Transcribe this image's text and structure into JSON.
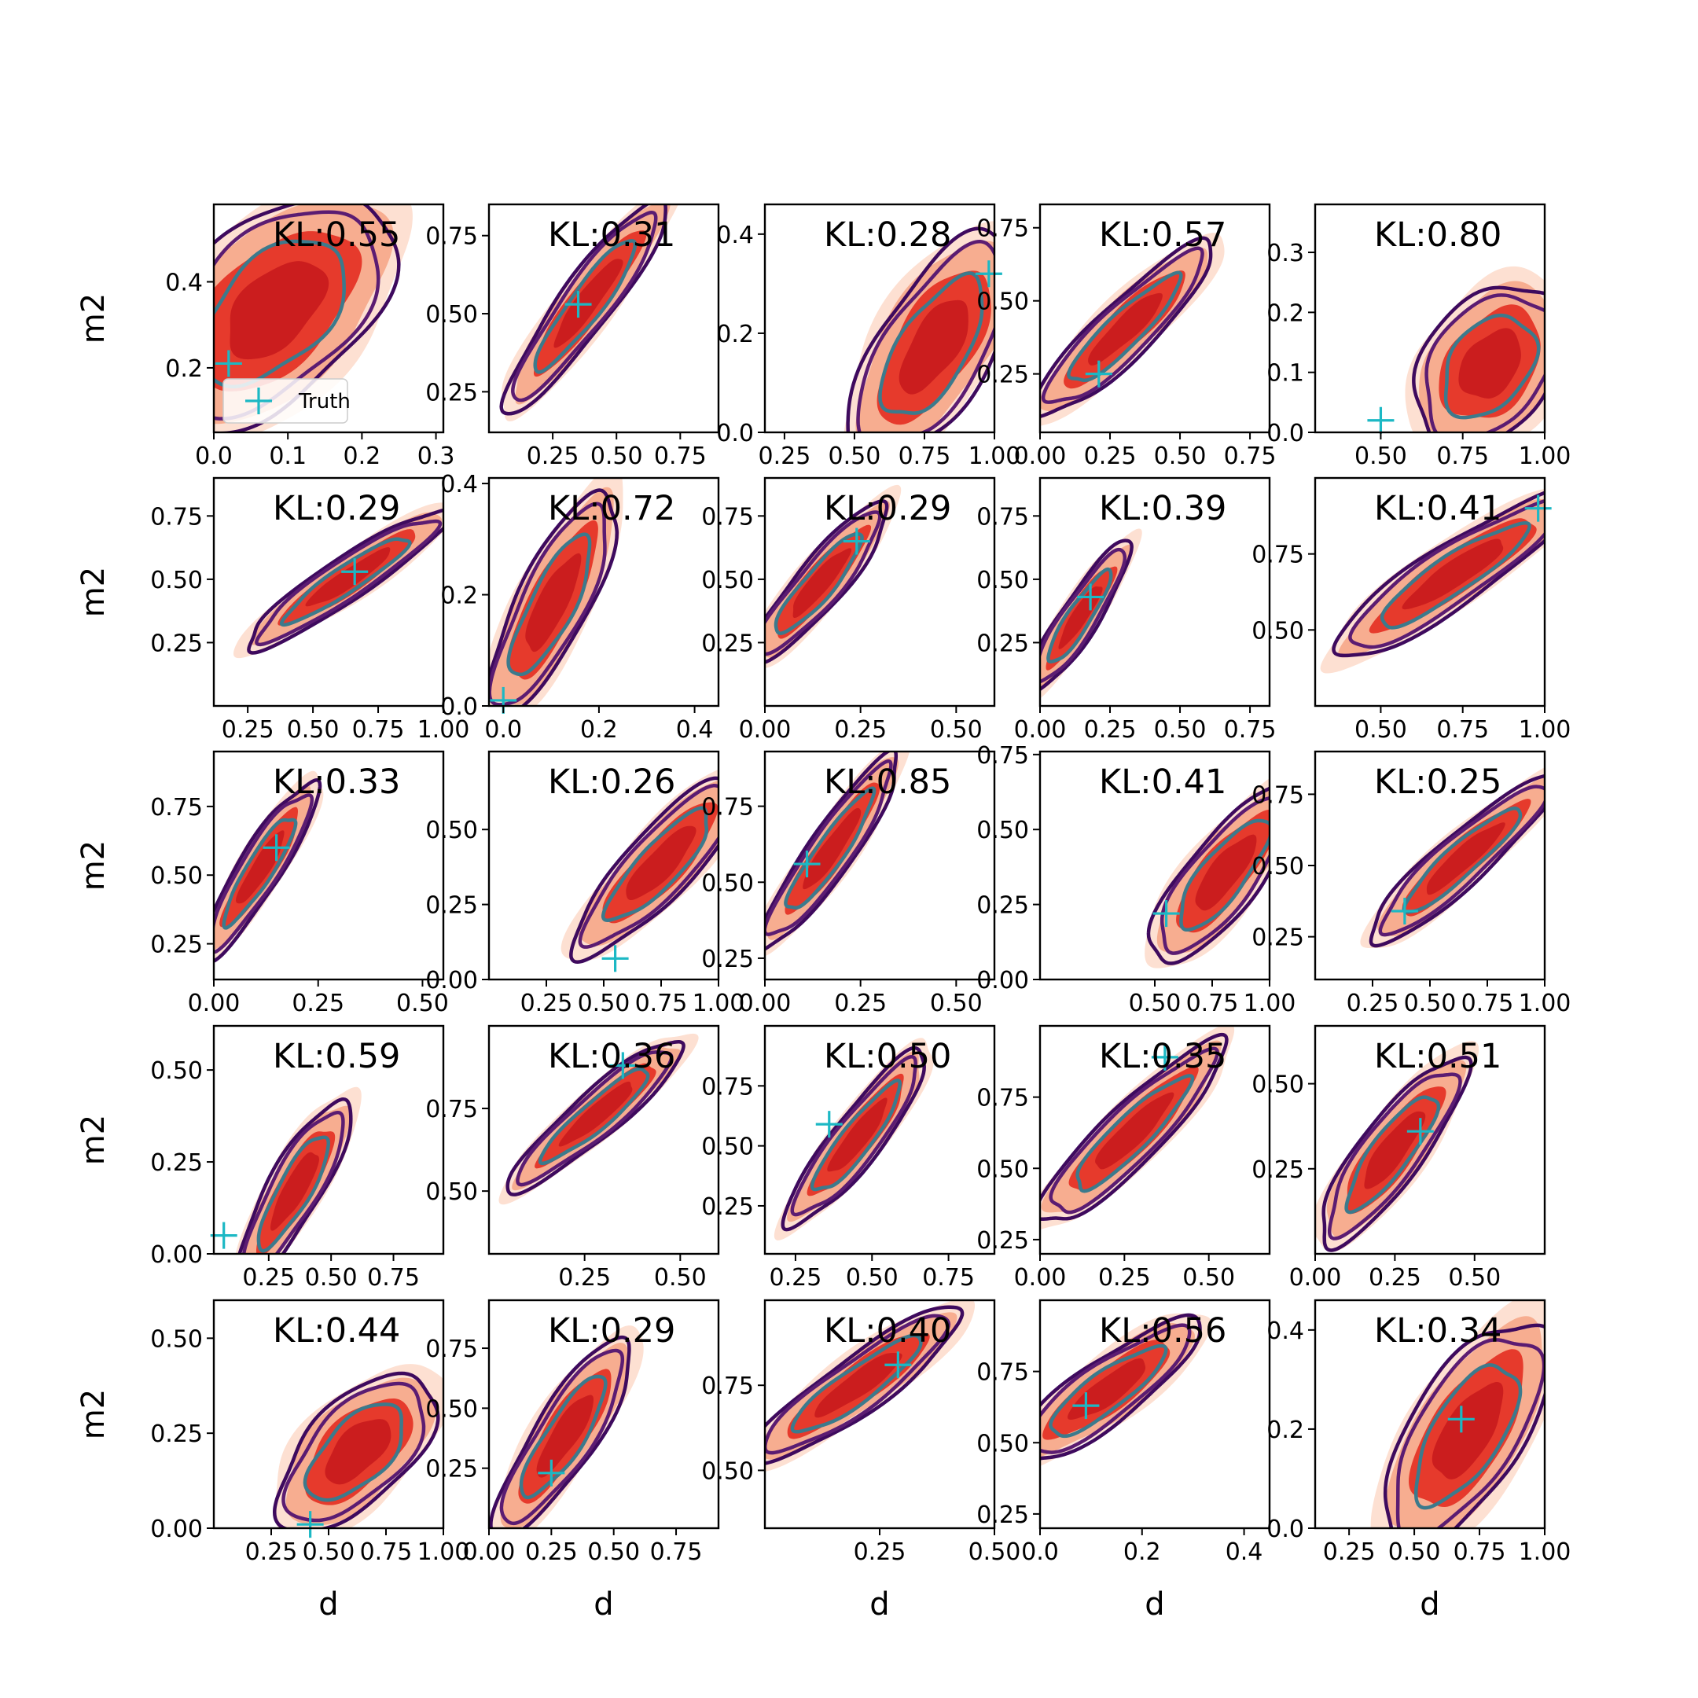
{
  "figure": {
    "legend_label": "Truth",
    "legend_position": "lower-left of panel 1"
  },
  "colors": {
    "fill_light": "#fde0d2",
    "fill_mid": "#f7ad90",
    "fill_dark": "#e63a2c",
    "fill_core": "#cb1d1e",
    "line_dark": "#3e0a5e",
    "line_mid": "#5b1c72",
    "line_teal": "#3c7a8c",
    "truth": "#1cb8c4"
  },
  "chart_data": [
    {
      "type": "contour",
      "title": "KL:0.55",
      "xlabel": "",
      "ylabel": "m2",
      "xlim": [
        0.0,
        0.31
      ],
      "ylim": [
        0.05,
        0.58
      ],
      "xticks": [
        0.0,
        0.1,
        0.2,
        0.3
      ],
      "xtick_labels": [
        "0.0",
        "0.1",
        "0.2",
        "0.3"
      ],
      "yticks": [
        0.2,
        0.4
      ],
      "ytick_labels": [
        "0.2",
        "0.4"
      ],
      "center": [
        0.08,
        0.33
      ],
      "spread": [
        0.07,
        0.12
      ],
      "corr": 0.5,
      "truth": [
        0.02,
        0.21
      ]
    },
    {
      "type": "contour",
      "title": "KL:0.31",
      "xlabel": "",
      "ylabel": "",
      "xlim": [
        0.0,
        0.9
      ],
      "ylim": [
        0.12,
        0.85
      ],
      "xticks": [
        0.25,
        0.5,
        0.75
      ],
      "xtick_labels": [
        "0.25",
        "0.50",
        "0.75"
      ],
      "yticks": [
        0.25,
        0.5,
        0.75
      ],
      "ytick_labels": [
        "0.25",
        "0.50",
        "0.75"
      ],
      "center": [
        0.38,
        0.53
      ],
      "spread": [
        0.14,
        0.15
      ],
      "corr": 0.92,
      "truth": [
        0.35,
        0.53
      ]
    },
    {
      "type": "contour",
      "title": "KL:0.28",
      "xlabel": "",
      "ylabel": "",
      "xlim": [
        0.18,
        1.0
      ],
      "ylim": [
        0.0,
        0.46
      ],
      "xticks": [
        0.25,
        0.5,
        0.75,
        1.0
      ],
      "xtick_labels": [
        "0.25",
        "0.50",
        "0.75",
        "1.00"
      ],
      "yticks": [
        0.0,
        0.2,
        0.4
      ],
      "ytick_labels": [
        "0.0",
        "0.2",
        "0.4"
      ],
      "center": [
        0.78,
        0.17
      ],
      "spread": [
        0.13,
        0.1
      ],
      "corr": 0.65,
      "truth": [
        0.98,
        0.32
      ]
    },
    {
      "type": "contour",
      "title": "KL:0.57",
      "xlabel": "",
      "ylabel": "",
      "xlim": [
        0.0,
        0.82
      ],
      "ylim": [
        0.05,
        0.83
      ],
      "xticks": [
        0.0,
        0.25,
        0.5,
        0.75
      ],
      "xtick_labels": [
        "0.00",
        "0.25",
        "0.50",
        "0.75"
      ],
      "yticks": [
        0.25,
        0.5,
        0.75
      ],
      "ytick_labels": [
        "0.25",
        "0.50",
        "0.75"
      ],
      "center": [
        0.3,
        0.4
      ],
      "spread": [
        0.14,
        0.13
      ],
      "corr": 0.9,
      "truth": [
        0.21,
        0.25
      ]
    },
    {
      "type": "contour",
      "title": "KL:0.80",
      "xlabel": "",
      "ylabel": "",
      "xlim": [
        0.3,
        1.0
      ],
      "ylim": [
        0.0,
        0.38
      ],
      "xticks": [
        0.5,
        0.75,
        1.0
      ],
      "xtick_labels": [
        "0.50",
        "0.75",
        "1.00"
      ],
      "yticks": [
        0.0,
        0.1,
        0.2,
        0.3
      ],
      "ytick_labels": [
        "0.0",
        "0.1",
        "0.2",
        "0.3"
      ],
      "center": [
        0.83,
        0.11
      ],
      "spread": [
        0.1,
        0.06
      ],
      "corr": 0.35,
      "truth": [
        0.5,
        0.02
      ]
    },
    {
      "type": "contour",
      "title": "KL:0.29",
      "xlabel": "",
      "ylabel": "m2",
      "xlim": [
        0.12,
        1.0
      ],
      "ylim": [
        0.0,
        0.9
      ],
      "xticks": [
        0.25,
        0.5,
        0.75,
        1.0
      ],
      "xtick_labels": [
        "0.25",
        "0.50",
        "0.75",
        "1.00"
      ],
      "yticks": [
        0.25,
        0.5,
        0.75
      ],
      "ytick_labels": [
        "0.25",
        "0.50",
        "0.75"
      ],
      "center": [
        0.63,
        0.5
      ],
      "spread": [
        0.17,
        0.12
      ],
      "corr": 0.93,
      "truth": [
        0.66,
        0.53
      ]
    },
    {
      "type": "contour",
      "title": "KL:0.72",
      "xlabel": "",
      "ylabel": "",
      "xlim": [
        -0.03,
        0.45
      ],
      "ylim": [
        0.0,
        0.41
      ],
      "xticks": [
        0.0,
        0.2,
        0.4
      ],
      "xtick_labels": [
        "0.0",
        "0.2",
        "0.4"
      ],
      "yticks": [
        0.0,
        0.2,
        0.4
      ],
      "ytick_labels": [
        "0.0",
        "0.2",
        "0.4"
      ],
      "center": [
        0.1,
        0.18
      ],
      "spread": [
        0.06,
        0.09
      ],
      "corr": 0.8,
      "truth": [
        0.0,
        0.01
      ]
    },
    {
      "type": "contour",
      "title": "KL:0.29",
      "xlabel": "",
      "ylabel": "",
      "xlim": [
        0.0,
        0.6
      ],
      "ylim": [
        0.0,
        0.9
      ],
      "xticks": [
        0.0,
        0.25,
        0.5
      ],
      "xtick_labels": [
        "0.00",
        "0.25",
        "0.50"
      ],
      "yticks": [
        0.25,
        0.5,
        0.75
      ],
      "ytick_labels": [
        "0.25",
        "0.50",
        "0.75"
      ],
      "center": [
        0.14,
        0.48
      ],
      "spread": [
        0.08,
        0.14
      ],
      "corr": 0.9,
      "truth": [
        0.24,
        0.65
      ]
    },
    {
      "type": "contour",
      "title": "KL:0.39",
      "xlabel": "",
      "ylabel": "",
      "xlim": [
        0.0,
        0.82
      ],
      "ylim": [
        0.0,
        0.9
      ],
      "xticks": [
        0.0,
        0.25,
        0.5,
        0.75
      ],
      "xtick_labels": [
        "0.00",
        "0.25",
        "0.50",
        "0.75"
      ],
      "yticks": [
        0.25,
        0.5,
        0.75
      ],
      "ytick_labels": [
        "0.25",
        "0.50",
        "0.75"
      ],
      "center": [
        0.14,
        0.35
      ],
      "spread": [
        0.08,
        0.13
      ],
      "corr": 0.9,
      "truth": [
        0.18,
        0.43
      ]
    },
    {
      "type": "contour",
      "title": "KL:0.41",
      "xlabel": "",
      "ylabel": "",
      "xlim": [
        0.3,
        1.0
      ],
      "ylim": [
        0.25,
        1.0
      ],
      "xticks": [
        0.5,
        0.75,
        1.0
      ],
      "xtick_labels": [
        "0.50",
        "0.75",
        "1.00"
      ],
      "yticks": [
        0.5,
        0.75
      ],
      "ytick_labels": [
        "0.50",
        "0.75"
      ],
      "center": [
        0.72,
        0.68
      ],
      "spread": [
        0.16,
        0.12
      ],
      "corr": 0.9,
      "truth": [
        0.98,
        0.9
      ]
    },
    {
      "type": "contour",
      "title": "KL:0.33",
      "xlabel": "",
      "ylabel": "m2",
      "xlim": [
        0.0,
        0.55
      ],
      "ylim": [
        0.12,
        0.95
      ],
      "xticks": [
        0.0,
        0.25,
        0.5
      ],
      "xtick_labels": [
        "0.00",
        "0.25",
        "0.50"
      ],
      "yticks": [
        0.25,
        0.5,
        0.75
      ],
      "ytick_labels": [
        "0.25",
        "0.50",
        "0.75"
      ],
      "center": [
        0.11,
        0.52
      ],
      "spread": [
        0.06,
        0.14
      ],
      "corr": 0.9,
      "truth": [
        0.15,
        0.6
      ]
    },
    {
      "type": "contour",
      "title": "KL:0.26",
      "xlabel": "",
      "ylabel": "",
      "xlim": [
        0.0,
        1.0
      ],
      "ylim": [
        0.0,
        0.76
      ],
      "xticks": [
        0.25,
        0.5,
        0.75,
        1.0
      ],
      "xtick_labels": [
        "0.25",
        "0.50",
        "0.75",
        "1.00"
      ],
      "yticks": [
        0.0,
        0.25,
        0.5
      ],
      "ytick_labels": [
        "0.00",
        "0.25",
        "0.50"
      ],
      "center": [
        0.74,
        0.38
      ],
      "spread": [
        0.16,
        0.13
      ],
      "corr": 0.85,
      "truth": [
        0.55,
        0.07
      ]
    },
    {
      "type": "contour",
      "title": "KL:0.85",
      "xlabel": "",
      "ylabel": "",
      "xlim": [
        0.0,
        0.6
      ],
      "ylim": [
        0.18,
        0.93
      ],
      "xticks": [
        0.0,
        0.25,
        0.5
      ],
      "xtick_labels": [
        "0.00",
        "0.25",
        "0.50"
      ],
      "yticks": [
        0.25,
        0.5,
        0.75
      ],
      "ytick_labels": [
        "0.25",
        "0.50",
        "0.75"
      ],
      "center": [
        0.17,
        0.6
      ],
      "spread": [
        0.08,
        0.14
      ],
      "corr": 0.92,
      "truth": [
        0.11,
        0.56
      ]
    },
    {
      "type": "contour",
      "title": "KL:0.41",
      "xlabel": "",
      "ylabel": "",
      "xlim": [
        0.0,
        1.0
      ],
      "ylim": [
        0.0,
        0.76
      ],
      "xticks": [
        0.5,
        0.75,
        1.0
      ],
      "xtick_labels": [
        "0.50",
        "0.75",
        "1.00"
      ],
      "yticks": [
        0.0,
        0.25,
        0.5,
        0.75
      ],
      "ytick_labels": [
        "0.00",
        "0.25",
        "0.50",
        "0.75"
      ],
      "center": [
        0.8,
        0.35
      ],
      "spread": [
        0.14,
        0.13
      ],
      "corr": 0.8,
      "truth": [
        0.55,
        0.22
      ]
    },
    {
      "type": "contour",
      "title": "KL:0.25",
      "xlabel": "",
      "ylabel": "",
      "xlim": [
        0.0,
        1.0
      ],
      "ylim": [
        0.1,
        0.9
      ],
      "xticks": [
        0.25,
        0.5,
        0.75,
        1.0
      ],
      "xtick_labels": [
        "0.25",
        "0.50",
        "0.75",
        "1.00"
      ],
      "yticks": [
        0.25,
        0.5,
        0.75
      ],
      "ytick_labels": [
        "0.25",
        "0.50",
        "0.75"
      ],
      "center": [
        0.64,
        0.52
      ],
      "spread": [
        0.18,
        0.13
      ],
      "corr": 0.92,
      "truth": [
        0.39,
        0.34
      ]
    },
    {
      "type": "contour",
      "title": "KL:0.59",
      "xlabel": "",
      "ylabel": "m2",
      "xlim": [
        0.03,
        0.95
      ],
      "ylim": [
        0.0,
        0.62
      ],
      "xticks": [
        0.25,
        0.5,
        0.75
      ],
      "xtick_labels": [
        "0.25",
        "0.50",
        "0.75"
      ],
      "yticks": [
        0.0,
        0.25,
        0.5
      ],
      "ytick_labels": [
        "0.00",
        "0.25",
        "0.50"
      ],
      "center": [
        0.35,
        0.17
      ],
      "spread": [
        0.1,
        0.11
      ],
      "corr": 0.85,
      "truth": [
        0.07,
        0.05
      ]
    },
    {
      "type": "contour",
      "title": "KL:0.36",
      "xlabel": "",
      "ylabel": "",
      "xlim": [
        0.0,
        0.6
      ],
      "ylim": [
        0.31,
        1.0
      ],
      "xticks": [
        0.25,
        0.5
      ],
      "xtick_labels": [
        "0.25",
        "0.50"
      ],
      "yticks": [
        0.5,
        0.75
      ],
      "ytick_labels": [
        "0.50",
        "0.75"
      ],
      "center": [
        0.28,
        0.73
      ],
      "spread": [
        0.1,
        0.1
      ],
      "corr": 0.92,
      "truth": [
        0.35,
        0.88
      ]
    },
    {
      "type": "contour",
      "title": "KL:0.50",
      "xlabel": "",
      "ylabel": "",
      "xlim": [
        0.15,
        0.9
      ],
      "ylim": [
        0.05,
        1.0
      ],
      "xticks": [
        0.25,
        0.5,
        0.75
      ],
      "xtick_labels": [
        "0.25",
        "0.50",
        "0.75"
      ],
      "yticks": [
        0.25,
        0.5,
        0.75
      ],
      "ytick_labels": [
        "0.25",
        "0.50",
        "0.75"
      ],
      "center": [
        0.45,
        0.53
      ],
      "spread": [
        0.1,
        0.16
      ],
      "corr": 0.9,
      "truth": [
        0.36,
        0.59
      ]
    },
    {
      "type": "contour",
      "title": "KL:0.35",
      "xlabel": "",
      "ylabel": "",
      "xlim": [
        0.0,
        0.68
      ],
      "ylim": [
        0.2,
        1.0
      ],
      "xticks": [
        0.0,
        0.25,
        0.5
      ],
      "xtick_labels": [
        "0.00",
        "0.25",
        "0.50"
      ],
      "yticks": [
        0.25,
        0.5,
        0.75
      ],
      "ytick_labels": [
        "0.25",
        "0.50",
        "0.75"
      ],
      "center": [
        0.27,
        0.62
      ],
      "spread": [
        0.12,
        0.14
      ],
      "corr": 0.9,
      "truth": [
        0.37,
        0.89
      ]
    },
    {
      "type": "contour",
      "title": "KL:0.51",
      "xlabel": "",
      "ylabel": "",
      "xlim": [
        0.0,
        0.72
      ],
      "ylim": [
        0.0,
        0.67
      ],
      "xticks": [
        0.0,
        0.25,
        0.5
      ],
      "xtick_labels": [
        "0.00",
        "0.25",
        "0.50"
      ],
      "yticks": [
        0.25,
        0.5
      ],
      "ytick_labels": [
        "0.25",
        "0.50"
      ],
      "center": [
        0.24,
        0.3
      ],
      "spread": [
        0.1,
        0.12
      ],
      "corr": 0.85,
      "truth": [
        0.33,
        0.36
      ]
    },
    {
      "type": "contour",
      "title": "KL:0.44",
      "xlabel": "d",
      "ylabel": "m2",
      "xlim": [
        0.0,
        1.0
      ],
      "ylim": [
        0.0,
        0.6
      ],
      "xticks": [
        0.25,
        0.5,
        0.75,
        1.0
      ],
      "xtick_labels": [
        "0.25",
        "0.50",
        "0.75",
        "1.00"
      ],
      "yticks": [
        0.0,
        0.25,
        0.5
      ],
      "ytick_labels": [
        "0.00",
        "0.25",
        "0.50"
      ],
      "center": [
        0.62,
        0.2
      ],
      "spread": [
        0.15,
        0.09
      ],
      "corr": 0.6,
      "truth": [
        0.42,
        0.01
      ]
    },
    {
      "type": "contour",
      "title": "KL:0.29",
      "xlabel": "d",
      "ylabel": "",
      "xlim": [
        0.0,
        0.92
      ],
      "ylim": [
        0.0,
        0.95
      ],
      "xticks": [
        0.0,
        0.25,
        0.5,
        0.75
      ],
      "xtick_labels": [
        "0.00",
        "0.25",
        "0.50",
        "0.75"
      ],
      "yticks": [
        0.25,
        0.5,
        0.75
      ],
      "ytick_labels": [
        "0.25",
        "0.50",
        "0.75"
      ],
      "center": [
        0.3,
        0.38
      ],
      "spread": [
        0.12,
        0.18
      ],
      "corr": 0.85,
      "truth": [
        0.25,
        0.23
      ]
    },
    {
      "type": "contour",
      "title": "KL:0.40",
      "xlabel": "d",
      "ylabel": "",
      "xlim": [
        0.0,
        0.5
      ],
      "ylim": [
        0.33,
        1.0
      ],
      "xticks": [
        0.25,
        0.5
      ],
      "xtick_labels": [
        "0.25",
        "0.50"
      ],
      "yticks": [
        0.5,
        0.75
      ],
      "ytick_labels": [
        "0.50",
        "0.75"
      ],
      "center": [
        0.2,
        0.75
      ],
      "spread": [
        0.1,
        0.1
      ],
      "corr": 0.9,
      "truth": [
        0.29,
        0.81
      ]
    },
    {
      "type": "contour",
      "title": "KL:0.56",
      "xlabel": "d",
      "ylabel": "",
      "xlim": [
        0.0,
        0.45
      ],
      "ylim": [
        0.2,
        1.0
      ],
      "xticks": [
        0.0,
        0.2,
        0.4
      ],
      "xtick_labels": [
        "0.0",
        "0.2",
        "0.4"
      ],
      "yticks": [
        0.25,
        0.5,
        0.75
      ],
      "ytick_labels": [
        "0.25",
        "0.50",
        "0.75"
      ],
      "center": [
        0.13,
        0.68
      ],
      "spread": [
        0.08,
        0.11
      ],
      "corr": 0.85,
      "truth": [
        0.09,
        0.63
      ]
    },
    {
      "type": "contour",
      "title": "KL:0.34",
      "xlabel": "d",
      "ylabel": "",
      "xlim": [
        0.12,
        1.0
      ],
      "ylim": [
        0.0,
        0.46
      ],
      "xticks": [
        0.25,
        0.5,
        0.75,
        1.0
      ],
      "xtick_labels": [
        "0.25",
        "0.50",
        "0.75",
        "1.00"
      ],
      "yticks": [
        0.0,
        0.2,
        0.4
      ],
      "ytick_labels": [
        "0.0",
        "0.2",
        "0.4"
      ],
      "center": [
        0.7,
        0.19
      ],
      "spread": [
        0.14,
        0.1
      ],
      "corr": 0.65,
      "truth": [
        0.68,
        0.22
      ]
    }
  ]
}
